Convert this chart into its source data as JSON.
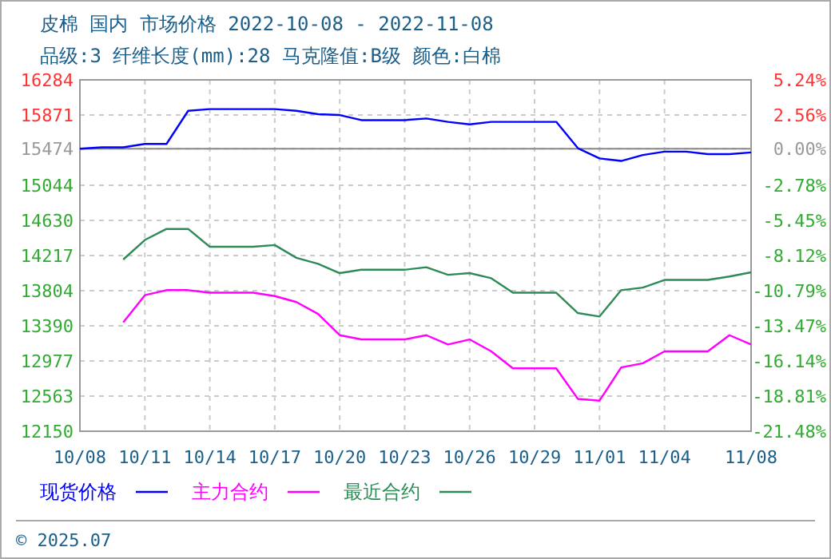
{
  "chart_data": {
    "type": "line",
    "title": "皮棉 国内 市场价格 2022-10-08 - 2022-11-08",
    "subtitle": "品级:3 纤维长度(mm):28 马克隆值:B级 颜色:白棉",
    "x": [
      "2022-10-08",
      "2022-10-09",
      "2022-10-10",
      "2022-10-11",
      "2022-10-12",
      "2022-10-13",
      "2022-10-14",
      "2022-10-15",
      "2022-10-16",
      "2022-10-17",
      "2022-10-18",
      "2022-10-19",
      "2022-10-20",
      "2022-10-21",
      "2022-10-22",
      "2022-10-23",
      "2022-10-24",
      "2022-10-25",
      "2022-10-26",
      "2022-10-27",
      "2022-10-28",
      "2022-10-29",
      "2022-10-30",
      "2022-10-31",
      "2022-11-01",
      "2022-11-02",
      "2022-11-03",
      "2022-11-04",
      "2022-11-05",
      "2022-11-06",
      "2022-11-07",
      "2022-11-08"
    ],
    "series": [
      {
        "name": "现货价格",
        "color": "#0000ff",
        "values": [
          15474,
          15490,
          15490,
          15530,
          15530,
          15920,
          15940,
          15940,
          15940,
          15940,
          15920,
          15880,
          15870,
          15810,
          15810,
          15810,
          15830,
          15790,
          15760,
          15790,
          15790,
          15790,
          15790,
          15480,
          15360,
          15330,
          15400,
          15440,
          15440,
          15410,
          15410,
          15430
        ]
      },
      {
        "name": "主力合约",
        "color": "#ff00ff",
        "values": [
          null,
          null,
          13430,
          13750,
          13810,
          13810,
          13780,
          13780,
          13780,
          13740,
          13670,
          13530,
          13280,
          13230,
          13230,
          13230,
          13280,
          13170,
          13230,
          13090,
          12890,
          12890,
          12890,
          12530,
          12510,
          12900,
          12950,
          13090,
          13090,
          13090,
          13280,
          13170
        ]
      },
      {
        "name": "最近合约",
        "color": "#2e8b57",
        "values": [
          null,
          null,
          14170,
          14400,
          14530,
          14530,
          14320,
          14320,
          14320,
          14340,
          14190,
          14120,
          14010,
          14050,
          14050,
          14050,
          14080,
          13990,
          14010,
          13950,
          13780,
          13780,
          13780,
          13540,
          13500,
          13810,
          13840,
          13930,
          13930,
          13930,
          13970,
          14020
        ]
      }
    ],
    "xlim": [
      "2022-10-08",
      "2022-11-08"
    ],
    "xticks": [
      {
        "value": "2022-10-08",
        "label": "10/08"
      },
      {
        "value": "2022-10-11",
        "label": "10/11"
      },
      {
        "value": "2022-10-14",
        "label": "10/14"
      },
      {
        "value": "2022-10-17",
        "label": "10/17"
      },
      {
        "value": "2022-10-20",
        "label": "10/20"
      },
      {
        "value": "2022-10-23",
        "label": "10/23"
      },
      {
        "value": "2022-10-26",
        "label": "10/26"
      },
      {
        "value": "2022-10-29",
        "label": "10/29"
      },
      {
        "value": "2022-11-01",
        "label": "11/01"
      },
      {
        "value": "2022-11-04",
        "label": "11/04"
      },
      {
        "value": "2022-11-08",
        "label": "11/08"
      }
    ],
    "ylim": [
      12150,
      16284
    ],
    "yticks": [
      12150,
      12563,
      12977,
      13390,
      13804,
      14217,
      14630,
      15044,
      15474,
      15871,
      16284
    ],
    "y2lim": [
      -21.48,
      5.24
    ],
    "y2ticks": [
      {
        "value": -21.48,
        "label": "-21.48%"
      },
      {
        "value": -18.81,
        "label": "-18.81%"
      },
      {
        "value": -16.14,
        "label": "-16.14%"
      },
      {
        "value": -13.47,
        "label": "-13.47%"
      },
      {
        "value": -10.79,
        "label": "-10.79%"
      },
      {
        "value": -8.12,
        "label": "-8.12%"
      },
      {
        "value": -5.45,
        "label": "-5.45%"
      },
      {
        "value": -2.78,
        "label": "-2.78%"
      },
      {
        "value": 0,
        "label": "0.00%"
      },
      {
        "value": 2.56,
        "label": "2.56%"
      },
      {
        "value": 5.24,
        "label": "5.24%"
      }
    ],
    "ref_lines": [
      {
        "axis": "y",
        "value": 15474,
        "color": "#888888"
      }
    ],
    "grid": true,
    "legend": "bottom",
    "line_style": "solid",
    "marker": "none",
    "annotations": [
      "© 2025.07"
    ]
  }
}
